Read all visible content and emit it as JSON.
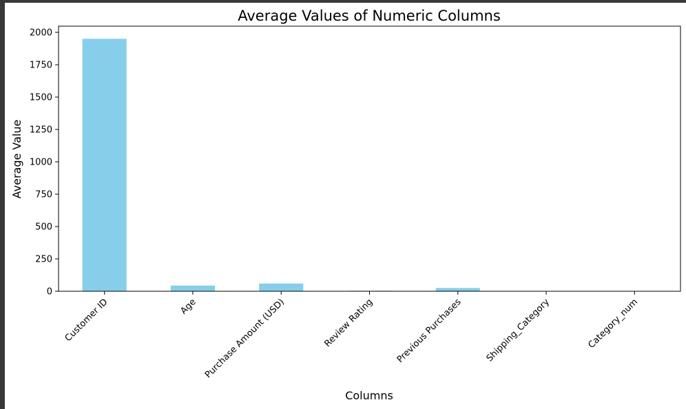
{
  "chart_data": {
    "type": "bar",
    "title": "Average Values of Numeric Columns",
    "xlabel": "Columns",
    "ylabel": "Average Value",
    "categories": [
      "Customer ID",
      "Age",
      "Purchase Amount (USD)",
      "Review Rating",
      "Previous Purchases",
      "Shipping_Category",
      "Category_num"
    ],
    "values": [
      1950.5,
      44.07,
      59.76,
      3.75,
      25.35,
      1.5,
      1.2
    ],
    "ylim": [
      0,
      2000
    ],
    "yticks": [
      0,
      250,
      500,
      750,
      1000,
      1250,
      1500,
      1750,
      2000
    ],
    "bar_color": "#87ceeb",
    "grid": false,
    "legend": "none"
  }
}
